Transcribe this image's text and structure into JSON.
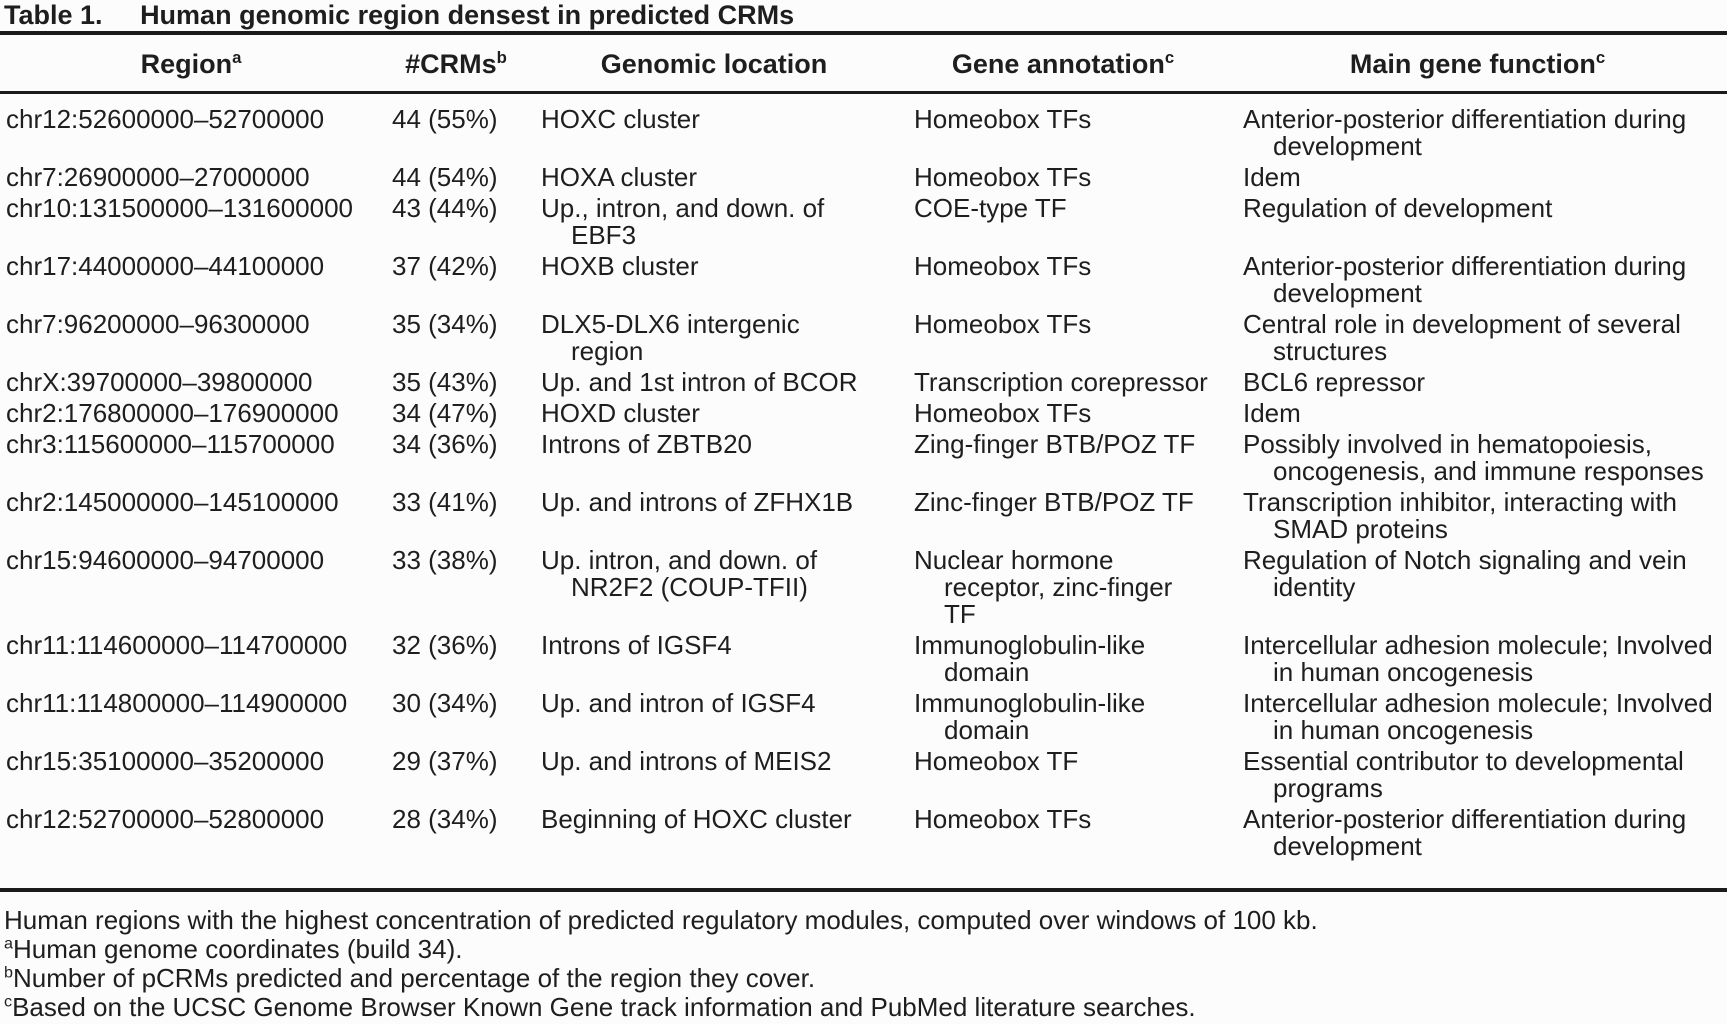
{
  "table": {
    "label": "Table 1.",
    "title": "Human genomic region densest in predicted CRMs",
    "columns": [
      {
        "label": "Region",
        "sup": "a"
      },
      {
        "label": "#CRMs",
        "sup": "b"
      },
      {
        "label": "Genomic location",
        "sup": ""
      },
      {
        "label": "Gene annotation",
        "sup": "c"
      },
      {
        "label": "Main gene function",
        "sup": "c"
      }
    ],
    "rows": [
      {
        "region": "chr12:52600000–52700000",
        "crms": "44 (55%)",
        "location": "HOXC cluster",
        "annotation": "Homeobox TFs",
        "function": "Anterior-posterior differentiation during\ndevelopment"
      },
      {
        "region": "chr7:26900000–27000000",
        "crms": "44 (54%)",
        "location": "HOXA cluster",
        "annotation": "Homeobox TFs",
        "function": "Idem"
      },
      {
        "region": "chr10:131500000–131600000",
        "crms": "43 (44%)",
        "location": "Up., intron, and down. of\nEBF3",
        "annotation": "COE-type TF",
        "function": "Regulation of development"
      },
      {
        "region": "chr17:44000000–44100000",
        "crms": "37 (42%)",
        "location": "HOXB cluster",
        "annotation": "Homeobox TFs",
        "function": "Anterior-posterior differentiation during\ndevelopment"
      },
      {
        "region": "chr7:96200000–96300000",
        "crms": "35 (34%)",
        "location": "DLX5-DLX6 intergenic\nregion",
        "annotation": "Homeobox TFs",
        "function": "Central role in development of several\nstructures"
      },
      {
        "region": "chrX:39700000–39800000",
        "crms": "35 (43%)",
        "location": "Up. and 1st intron of BCOR",
        "annotation": "Transcription corepressor",
        "function": "BCL6 repressor"
      },
      {
        "region": "chr2:176800000–176900000",
        "crms": "34 (47%)",
        "location": "HOXD cluster",
        "annotation": "Homeobox TFs",
        "function": "Idem"
      },
      {
        "region": "chr3:115600000–115700000",
        "crms": "34 (36%)",
        "location": "Introns of ZBTB20",
        "annotation": "Zing-finger BTB/POZ TF",
        "function": "Possibly involved in hematopoiesis,\noncogenesis, and immune responses"
      },
      {
        "region": "chr2:145000000–145100000",
        "crms": "33 (41%)",
        "location": "Up. and introns of ZFHX1B",
        "annotation": "Zinc-finger BTB/POZ TF",
        "function": "Transcription inhibitor, interacting with\nSMAD proteins"
      },
      {
        "region": "chr15:94600000–94700000",
        "crms": "33 (38%)",
        "location": "Up. intron, and down. of\nNR2F2 (COUP-TFII)",
        "annotation": "Nuclear hormone\nreceptor, zinc-finger\nTF",
        "function": "Regulation of Notch signaling and vein\nidentity"
      },
      {
        "region": "chr11:114600000–114700000",
        "crms": "32 (36%)",
        "location": "Introns of IGSF4",
        "annotation": "Immunoglobulin-like\ndomain",
        "function": "Intercellular adhesion molecule; Involved\nin human oncogenesis"
      },
      {
        "region": "chr11:114800000–114900000",
        "crms": "30 (34%)",
        "location": "Up. and intron of IGSF4",
        "annotation": "Immunoglobulin-like\ndomain",
        "function": "Intercellular adhesion molecule; Involved\nin human oncogenesis"
      },
      {
        "region": "chr15:35100000–35200000",
        "crms": "29 (37%)",
        "location": "Up. and introns of MEIS2",
        "annotation": "Homeobox TF",
        "function": "Essential contributor to developmental\nprograms"
      },
      {
        "region": "chr12:52700000–52800000",
        "crms": "28 (34%)",
        "location": "Beginning of HOXC cluster",
        "annotation": "Homeobox TFs",
        "function": "Anterior-posterior differentiation during\ndevelopment"
      }
    ]
  },
  "footnotes": [
    {
      "sup": "",
      "text": "Human regions with the highest concentration of predicted regulatory modules, computed over windows of 100 kb."
    },
    {
      "sup": "a",
      "text": "Human genome coordinates (build 34)."
    },
    {
      "sup": "b",
      "text": "Number of pCRMs predicted and percentage of the region they cover."
    },
    {
      "sup": "c",
      "text": "Based on the UCSC Genome Browser Known Gene track information and PubMed literature searches."
    }
  ],
  "colors": {
    "background": "#fcfcfc",
    "text": "#1e1e1e",
    "rule": "#1b1b1b"
  }
}
